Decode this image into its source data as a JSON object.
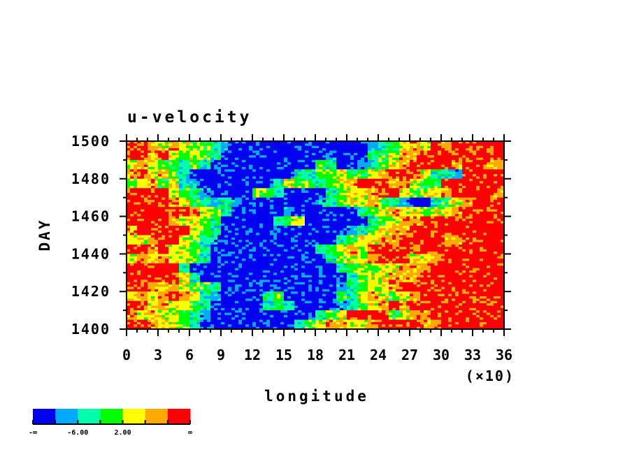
{
  "chart_data": {
    "type": "heatmap",
    "title": "u-velocity",
    "xlabel": "longitude",
    "ylabel": "DAY",
    "x_multiplier_label": "(×10)",
    "xlim": [
      0,
      36
    ],
    "ylim": [
      1400,
      1500
    ],
    "x_ticks": [
      "0",
      "3",
      "6",
      "9",
      "12",
      "15",
      "18",
      "21",
      "24",
      "27",
      "30",
      "33",
      "36"
    ],
    "y_ticks": [
      "1400",
      "1420",
      "1440",
      "1460",
      "1480",
      "1500"
    ],
    "colorbar": {
      "colors": [
        "#0000F0",
        "#00AAFF",
        "#00FFAA",
        "#00FF00",
        "#FFFF00",
        "#FFAA00",
        "#FF0000"
      ],
      "labels": [
        {
          "boundary": 0,
          "text": "-∞"
        },
        {
          "boundary": 2,
          "text": "-6.00"
        },
        {
          "boundary": 4,
          "text": "2.00"
        },
        {
          "boundary": 7,
          "text": "∞"
        }
      ]
    },
    "grid_note_legend": "B=0 L=1 C=2 G=3 Y=4 O=5 R=6 (color class index), rows from day 1500 down to 1400, columns lon 0 to 360",
    "grid": [
      "RROYOYGGCLBBBBBBBBBBBBBLCGYOYRORRRRR",
      "RRORYGYGCBBBBBBBBBBLBBBCGYOORRRRRRRR",
      "YOYGGCGCBBBBBBBBBBGCBBLCGYORRRRORROO",
      "ORYOGCBBBBBBBBBBCCGGYGGYORRRYCCLRRRR",
      "GYOGYCLBBBBBBBCYGGCGYORRROOYGGRRRRRR",
      "RRRRYGCLBBBBGGCBBBBCGYYORRYGYYORRRRO",
      "RRRROYGCLCLBBBBBBBLCGYYOGCLBBCGYORRR",
      "RRRRRROYGCBBBBBLBBBBBBCGYOYYGYYORRRR",
      "RRRROYYGCBBBBBCGYBBBBBBCGYOORRRRRRRR",
      "ORRRRRYGCBBBBBBBBBBBBLCGYOORRRRRRRRR",
      "YYORRYGCLBBBBBBBBBBBCGYYOORRRROORRRR",
      "RRORYYGCBBBBBBBBBBCGYOYRRRRORRRRRRRR",
      "YOYOYYGCBBBBBBBBBBBCGYYORRRYYORRRRRR",
      "RRRRRCBBBBBBBBBBBBBBCGYGYYOOORRRRRRR",
      "RRRRRYCBBBBBBBBBBBBBBCGYYOOORRRRRRRR",
      "RROYOYGGCBBBBBBBBBBBLCGYYORRRRRRRRRR",
      "YOYOROYCLBBBBCGBBBBBGCYOYGYORRRRRRRR",
      "RRYOYYGCBBBBBCGCBBBBLCGYORORRRRRRRRR",
      "OYOYYGCLBBBBBBBBBBCGYRRRRGYOORRRRRRR",
      "RROYYGCBBBBBBBBBCGYOOYYORRRROORRRRRR"
    ]
  }
}
